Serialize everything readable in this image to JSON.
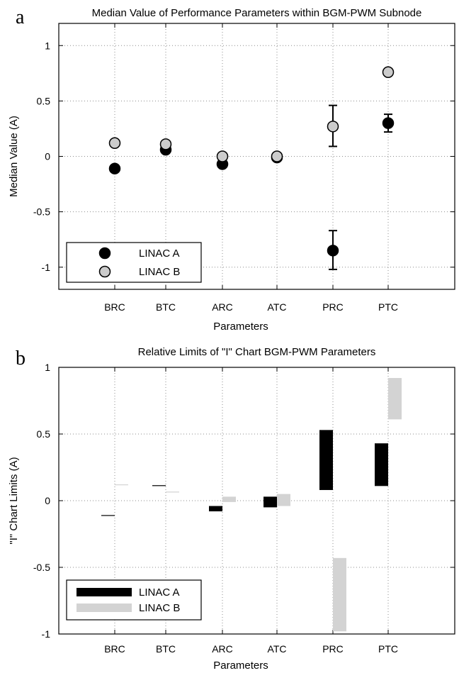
{
  "chart_data": [
    {
      "panel_label": "a",
      "type": "scatter",
      "title": "Median Value of Performance Parameters within BGM-PWM Subnode",
      "xlabel": "Parameters",
      "ylabel": "Median Value (A)",
      "categories": [
        "BRC",
        "BTC",
        "ARC",
        "ATC",
        "PRC",
        "PTC"
      ],
      "ylim": [
        -1.2,
        1.2
      ],
      "yticks": [
        -1,
        -0.5,
        0,
        0.5,
        1
      ],
      "ytick_labels": [
        "-1",
        "-0.5",
        "0",
        "0.5",
        "1"
      ],
      "grid": true,
      "legend_position": "bottom-left",
      "series": [
        {
          "name": "LINAC A",
          "color": "#000000",
          "values": [
            -0.11,
            0.06,
            -0.07,
            -0.01,
            -0.85,
            0.3
          ],
          "err_low": [
            null,
            null,
            null,
            null,
            -1.02,
            0.22
          ],
          "err_high": [
            null,
            null,
            null,
            null,
            -0.67,
            0.38
          ]
        },
        {
          "name": "LINAC B",
          "color": "#cccccc",
          "values": [
            0.12,
            0.11,
            0.0,
            0.0,
            0.27,
            0.76
          ],
          "err_low": [
            null,
            null,
            null,
            null,
            0.09,
            null
          ],
          "err_high": [
            null,
            null,
            null,
            null,
            0.46,
            null
          ]
        }
      ]
    },
    {
      "panel_label": "b",
      "type": "bar",
      "title": "Relative Limits of \"I\" Chart BGM-PWM Parameters",
      "xlabel": "Parameters",
      "ylabel": "\"I\" Chart Limits (A)",
      "categories": [
        "BRC",
        "BTC",
        "ARC",
        "ATC",
        "PRC",
        "PTC"
      ],
      "ylim": [
        -1,
        1
      ],
      "yticks": [
        -1,
        -0.5,
        0,
        0.5,
        1
      ],
      "ytick_labels": [
        "-1",
        "-0.5",
        "0",
        "0.5",
        "1"
      ],
      "grid": true,
      "legend_position": "bottom-left",
      "series": [
        {
          "name": "LINAC A",
          "color": "#000000",
          "low": [
            -0.112,
            0.112,
            -0.08,
            -0.05,
            0.08,
            0.11
          ],
          "high": [
            -0.108,
            0.116,
            -0.04,
            0.03,
            0.53,
            0.43
          ]
        },
        {
          "name": "LINAC B",
          "color": "#d3d3d3",
          "low": [
            0.118,
            0.063,
            -0.01,
            -0.04,
            -0.98,
            0.61
          ],
          "high": [
            0.122,
            0.068,
            0.03,
            0.05,
            -0.43,
            0.92
          ]
        }
      ]
    }
  ]
}
